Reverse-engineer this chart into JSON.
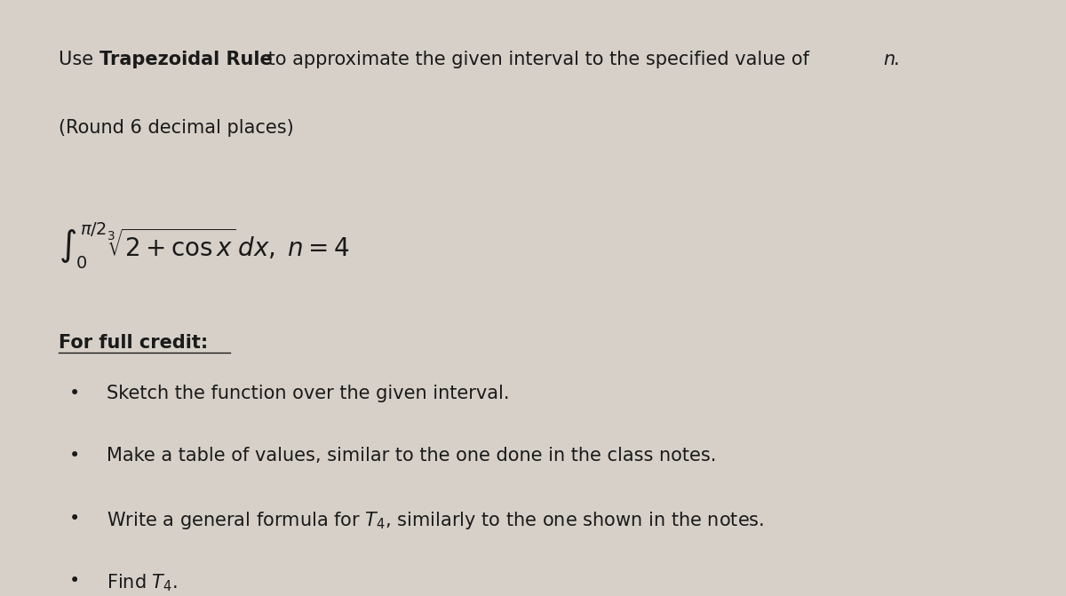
{
  "background_color": "#d6d0c8",
  "text_color": "#1a1a1a",
  "fig_width": 12.0,
  "fig_height": 6.71,
  "dpi": 100,
  "font_size_main": 15,
  "font_size_integral": 20,
  "bullets": [
    "Sketch the function over the given interval.",
    "Make a table of values, similar to the one done in the class notes.",
    "Write a general formula for $T_4$, similarly to the one shown in the notes.",
    "Find $T_4$."
  ]
}
